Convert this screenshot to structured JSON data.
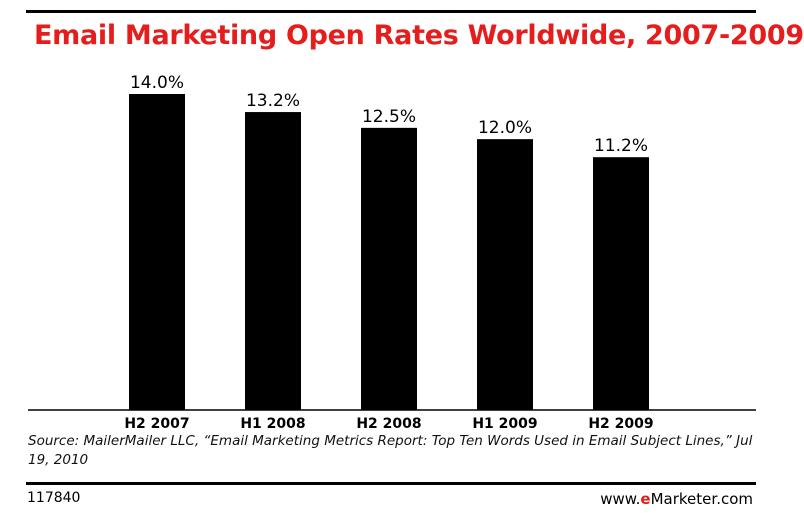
{
  "chart_data": {
    "type": "bar",
    "title": "Email Marketing Open Rates Worldwide, 2007-2009",
    "categories": [
      "H2 2007",
      "H1 2008",
      "H2 2008",
      "H1 2009",
      "H2 2009"
    ],
    "values": [
      14.0,
      13.2,
      12.5,
      12.0,
      11.2
    ],
    "data_labels": [
      "14.0%",
      "13.2%",
      "12.5%",
      "12.0%",
      "11.2%"
    ],
    "xlabel": "",
    "ylabel": "",
    "ylim": [
      0,
      14.0
    ],
    "grid": false,
    "bar_color": "#000000"
  },
  "source": "Source: MailerMailer LLC, “Email Marketing Metrics Report: Top Ten Words Used in Email Subject Lines,” Jul 19, 2010",
  "footer": {
    "chart_id": "117840",
    "brand_prefix": "www.",
    "brand_accent": "e",
    "brand_suffix": "Marketer.com"
  },
  "colors": {
    "title": "#e41d1d",
    "accent": "#e41d1d"
  }
}
